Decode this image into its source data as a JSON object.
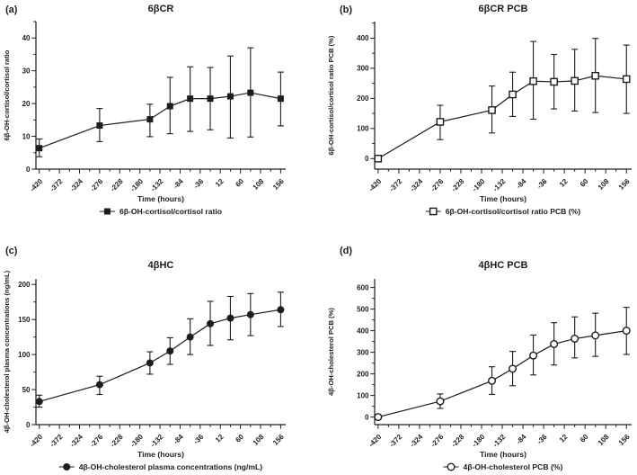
{
  "figure": {
    "background": "#ffffff",
    "ink": "#1d1d1d"
  },
  "chart_data": [
    {
      "type": "line",
      "panel_label": "(a)",
      "title": "6βCR",
      "xlabel": "Time (hours)",
      "ylabel": "6β-OH-cortisol/cortisol ratio",
      "legend": "6β-OH-cortisol/cortisol ratio",
      "marker": "filled-square",
      "x": [
        -420,
        -276,
        -156,
        -108,
        -60,
        -12,
        36,
        84,
        156
      ],
      "y": [
        6.4,
        13.3,
        15.2,
        19.2,
        21.5,
        21.5,
        22.2,
        23.3,
        21.5
      ],
      "err_low": [
        3.8,
        8.4,
        9.9,
        10.8,
        11.5,
        12.0,
        9.5,
        9.8,
        13.2
      ],
      "err_high": [
        9.2,
        18.5,
        19.8,
        28.0,
        31.2,
        31.0,
        34.5,
        37.0,
        29.6
      ],
      "xticks": [
        -420,
        -372,
        -324,
        -276,
        -228,
        -180,
        -132,
        -84,
        -36,
        12,
        60,
        108,
        156
      ],
      "x_minor_step": 24,
      "yticks": [
        0,
        10,
        20,
        30,
        40
      ],
      "y_minor_step": 5,
      "ylim": [
        0,
        45
      ],
      "xlim": [
        -428,
        168
      ],
      "grid": false,
      "legend_position": "bottom"
    },
    {
      "type": "line",
      "panel_label": "(b)",
      "title": "6βCR PCB",
      "xlabel": "Time (hours)",
      "ylabel": "6β-OH-cortisol/cortisol ratio PCB (%)",
      "legend": "6β-OH-cortisol/cortisol ratio PCB (%)",
      "marker": "open-square",
      "x": [
        -420,
        -276,
        -156,
        -108,
        -60,
        -12,
        36,
        84,
        156
      ],
      "y": [
        0,
        122,
        161,
        213,
        257,
        255,
        258,
        275,
        264
      ],
      "err_low": [
        0,
        63,
        85,
        140,
        131,
        165,
        158,
        153,
        150
      ],
      "err_high": [
        0,
        177,
        241,
        287,
        389,
        346,
        363,
        399,
        377
      ],
      "xticks": [
        -420,
        -372,
        -324,
        -276,
        -228,
        -180,
        -132,
        -84,
        -36,
        12,
        60,
        108,
        156
      ],
      "x_minor_step": 24,
      "yticks": [
        0,
        100,
        200,
        300,
        400
      ],
      "y_minor_step": 50,
      "ylim": [
        -35,
        455
      ],
      "xlim": [
        -428,
        168
      ],
      "grid": false,
      "legend_position": "bottom"
    },
    {
      "type": "line",
      "panel_label": "(c)",
      "title": "4βHC",
      "xlabel": "Time (hours)",
      "ylabel": "4β-OH-cholesterol plasma concentrations (ng/mL)",
      "legend": "4β-OH-cholesterol plasma concentrations (ng/mL)",
      "marker": "filled-circle",
      "x": [
        -420,
        -276,
        -156,
        -108,
        -60,
        -12,
        36,
        84,
        156
      ],
      "y": [
        33,
        57,
        88,
        105,
        125,
        144,
        152,
        157,
        164
      ],
      "err_low": [
        25,
        43,
        72,
        86,
        100,
        113,
        121,
        127,
        140
      ],
      "err_high": [
        42,
        69,
        104,
        124,
        151,
        176,
        183,
        187,
        189
      ],
      "xticks": [
        -420,
        -372,
        -324,
        -276,
        -228,
        -180,
        -132,
        -84,
        -36,
        12,
        60,
        108,
        156
      ],
      "x_minor_step": 24,
      "yticks": [
        0,
        50,
        100,
        150,
        200
      ],
      "y_minor_step": 25,
      "ylim": [
        0,
        208
      ],
      "xlim": [
        -428,
        168
      ],
      "grid": false,
      "legend_position": "bottom"
    },
    {
      "type": "line",
      "panel_label": "(d)",
      "title": "4βHC PCB",
      "xlabel": "Time (hours)",
      "ylabel": "4β-OH-cholesterol PCB (%)",
      "legend": "4β-OH-cholesterol PCB (%)",
      "marker": "open-circle",
      "x": [
        -420,
        -276,
        -156,
        -108,
        -60,
        -12,
        36,
        84,
        156
      ],
      "y": [
        0,
        73,
        168,
        224,
        285,
        338,
        363,
        378,
        400
      ],
      "err_low": [
        0,
        40,
        105,
        145,
        195,
        241,
        274,
        281,
        290
      ],
      "err_high": [
        0,
        107,
        233,
        304,
        380,
        437,
        464,
        481,
        508
      ],
      "xticks": [
        -420,
        -372,
        -324,
        -276,
        -228,
        -180,
        -132,
        -84,
        -36,
        12,
        60,
        108,
        156
      ],
      "x_minor_step": 24,
      "yticks": [
        0,
        100,
        200,
        300,
        400,
        500,
        600
      ],
      "y_minor_step": 50,
      "ylim": [
        -35,
        640
      ],
      "xlim": [
        -428,
        168
      ],
      "grid": false,
      "legend_position": "bottom"
    }
  ]
}
